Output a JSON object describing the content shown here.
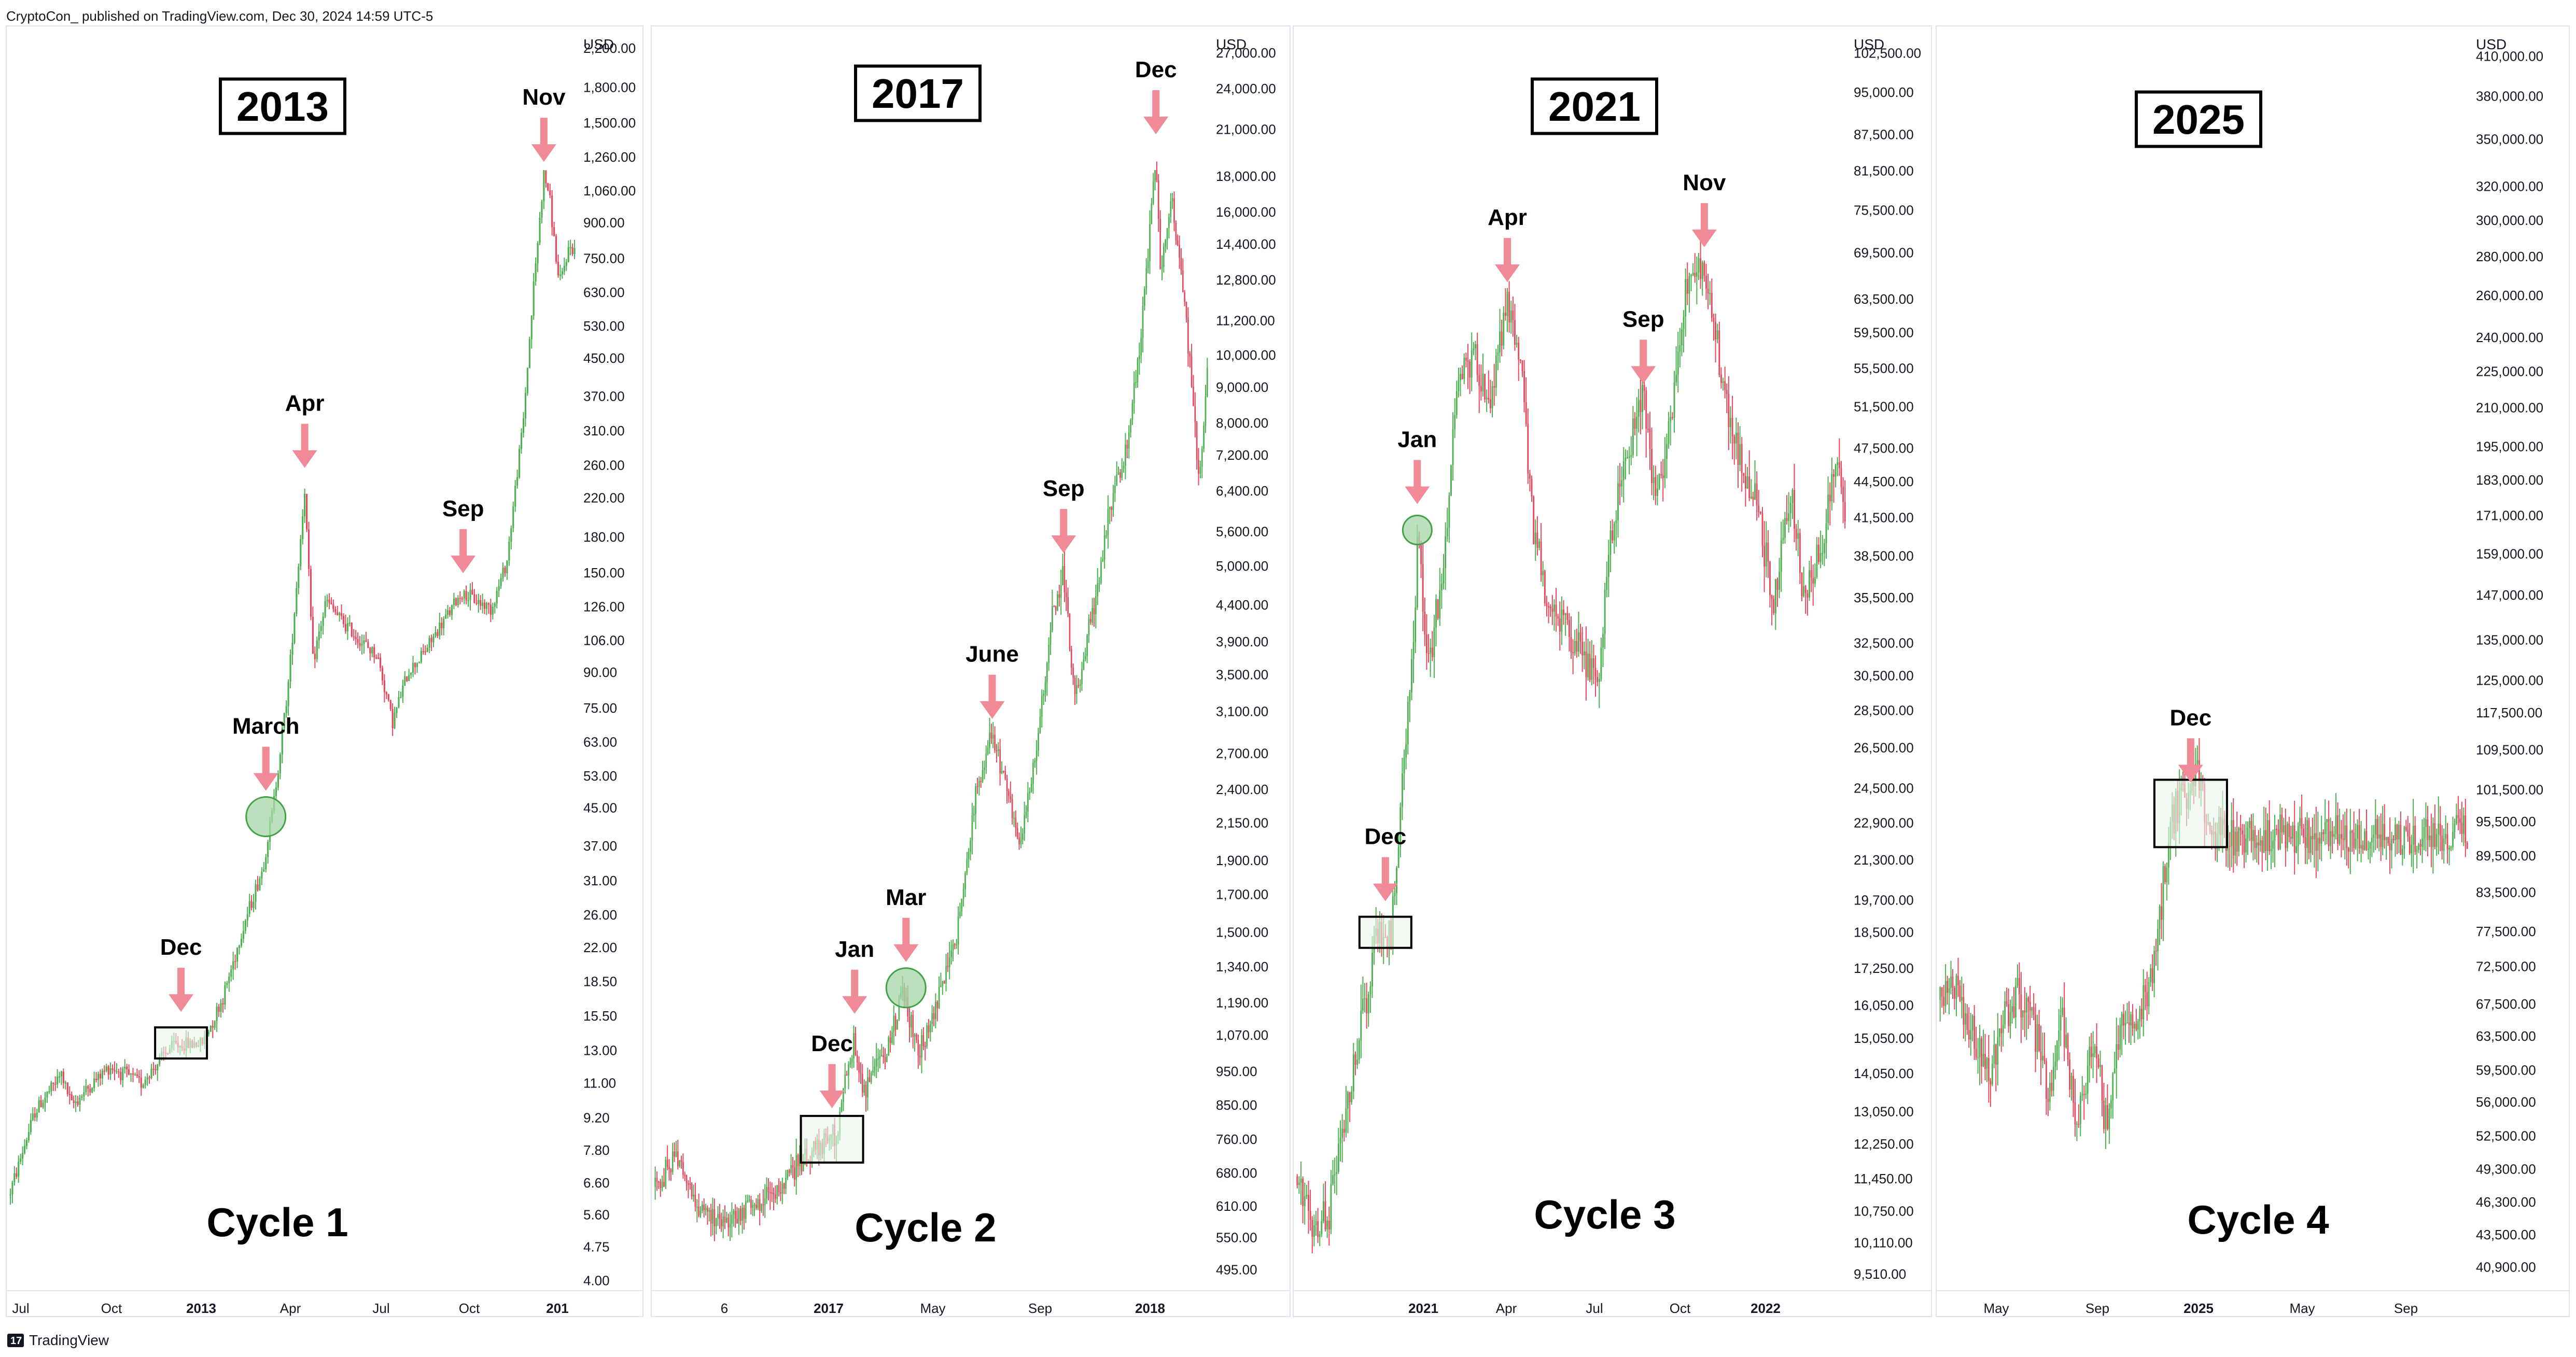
{
  "header": {
    "published_text": "CryptoCon_ published on TradingView.com, Dec 30, 2024 14:59 UTC-5"
  },
  "footer": {
    "brand": "TradingView"
  },
  "colors": {
    "up": "#4caf50",
    "down": "#e5475c",
    "arrow": "#f08a96",
    "circle_fill": "#a5d6a7",
    "circle_stroke": "#43a047",
    "box_fill": "#e8f5e9"
  },
  "chart_data": [
    {
      "type": "candlestick",
      "title": "2013",
      "subtitle": "Cycle 1",
      "axis_currency": "USD",
      "y_scale": "log",
      "ylim": [
        3.9,
        2400
      ],
      "y_ticks": [
        "4.00",
        "4.75",
        "5.60",
        "6.60",
        "7.80",
        "9.20",
        "11.00",
        "13.00",
        "15.50",
        "18.50",
        "22.00",
        "26.00",
        "31.00",
        "37.00",
        "45.00",
        "53.00",
        "63.00",
        "75.00",
        "90.00",
        "106.00",
        "126.00",
        "150.00",
        "180.00",
        "220.00",
        "260.00",
        "310.00",
        "370.00",
        "450.00",
        "530.00",
        "630.00",
        "750.00",
        "900.00",
        "1,060.00",
        "1,260.00",
        "1,500.00",
        "1,800.00",
        "2,200.00"
      ],
      "x_ticks": [
        "Jul",
        "Oct",
        "2013",
        "Apr",
        "Jul",
        "Oct",
        "201"
      ],
      "x_range": [
        "2012-06-25",
        "2013-12-31"
      ],
      "path_points": [
        [
          "2012-06-25",
          6.2
        ],
        [
          "2012-07-20",
          9.5
        ],
        [
          "2012-08-15",
          11.5
        ],
        [
          "2012-08-25",
          9.8
        ],
        [
          "2012-10-01",
          12
        ],
        [
          "2012-11-01",
          11
        ],
        [
          "2012-12-01",
          13.3
        ],
        [
          "2012-12-31",
          13.5
        ],
        [
          "2013-01-20",
          17
        ],
        [
          "2013-02-10",
          25
        ],
        [
          "2013-02-28",
          33
        ],
        [
          "2013-03-10",
          45
        ],
        [
          "2013-03-25",
          85
        ],
        [
          "2013-04-10",
          230
        ],
        [
          "2013-04-18",
          95
        ],
        [
          "2013-05-01",
          130
        ],
        [
          "2013-05-15",
          118
        ],
        [
          "2013-06-05",
          105
        ],
        [
          "2013-06-20",
          98
        ],
        [
          "2013-07-05",
          70
        ],
        [
          "2013-07-20",
          90
        ],
        [
          "2013-08-05",
          100
        ],
        [
          "2013-08-25",
          118
        ],
        [
          "2013-09-10",
          135
        ],
        [
          "2013-10-10",
          125
        ],
        [
          "2013-10-25",
          160
        ],
        [
          "2013-11-10",
          330
        ],
        [
          "2013-11-20",
          650
        ],
        [
          "2013-11-30",
          1150
        ],
        [
          "2013-12-05",
          1050
        ],
        [
          "2013-12-15",
          650
        ],
        [
          "2013-12-25",
          800
        ],
        [
          "2013-12-31",
          780
        ]
      ],
      "annotations": [
        {
          "label": "Dec",
          "date": "2012-12-10",
          "price": 13.5,
          "marker": "box"
        },
        {
          "label": "March",
          "date": "2013-03-03",
          "price": 43,
          "marker": "circle"
        },
        {
          "label": "Apr",
          "date": "2013-04-10",
          "price": 240,
          "marker": "none"
        },
        {
          "label": "Sep",
          "date": "2013-09-12",
          "price": 140,
          "marker": "none"
        },
        {
          "label": "Nov",
          "date": "2013-11-30",
          "price": 1150,
          "marker": "none"
        }
      ]
    },
    {
      "type": "candlestick",
      "title": "2017",
      "subtitle": "Cycle 2",
      "axis_currency": "USD",
      "y_scale": "log",
      "ylim": [
        470,
        29000
      ],
      "y_ticks": [
        "495.00",
        "550.00",
        "610.00",
        "680.00",
        "760.00",
        "850.00",
        "950.00",
        "1,070.00",
        "1,190.00",
        "1,340.00",
        "1,500.00",
        "1,700.00",
        "1,900.00",
        "2,150.00",
        "2,400.00",
        "2,700.00",
        "3,100.00",
        "3,500.00",
        "3,900.00",
        "4,400.00",
        "5,000.00",
        "5,600.00",
        "6,400.00",
        "7,200.00",
        "8,000.00",
        "9,000.00",
        "10,000.00",
        "11,200.00",
        "12,800.00",
        "14,400.00",
        "16,000.00",
        "18,000.00",
        "21,000.00",
        "24,000.00",
        "27,000.00"
      ],
      "x_ticks": [
        "6",
        "2017",
        "May",
        "Sep",
        "2018"
      ],
      "x_range": [
        "2016-05-20",
        "2018-02-15"
      ],
      "path_points": [
        [
          "2016-05-20",
          650
        ],
        [
          "2016-06-15",
          720
        ],
        [
          "2016-07-10",
          600
        ],
        [
          "2016-08-10",
          580
        ],
        [
          "2016-09-10",
          610
        ],
        [
          "2016-10-10",
          640
        ],
        [
          "2016-11-10",
          720
        ],
        [
          "2016-12-15",
          780
        ],
        [
          "2017-01-04",
          1050
        ],
        [
          "2017-01-15",
          880
        ],
        [
          "2017-02-15",
          1050
        ],
        [
          "2017-03-01",
          1250
        ],
        [
          "2017-03-20",
          1000
        ],
        [
          "2017-04-10",
          1200
        ],
        [
          "2017-05-01",
          1450
        ],
        [
          "2017-05-25",
          2400
        ],
        [
          "2017-06-12",
          2900
        ],
        [
          "2017-07-15",
          2000
        ],
        [
          "2017-08-01",
          2700
        ],
        [
          "2017-08-20",
          4200
        ],
        [
          "2017-09-02",
          4900
        ],
        [
          "2017-09-15",
          3200
        ],
        [
          "2017-10-05",
          4300
        ],
        [
          "2017-10-25",
          6000
        ],
        [
          "2017-11-15",
          7500
        ],
        [
          "2017-12-01",
          11000
        ],
        [
          "2017-12-17",
          19500
        ],
        [
          "2017-12-22",
          13500
        ],
        [
          "2018-01-05",
          16500
        ],
        [
          "2018-01-20",
          11500
        ],
        [
          "2018-02-05",
          6500
        ],
        [
          "2018-02-15",
          10000
        ]
      ],
      "annotations": [
        {
          "label": "Dec",
          "date": "2016-12-10",
          "price": 760,
          "marker": "box"
        },
        {
          "label": "Jan",
          "date": "2017-01-05",
          "price": 1100,
          "marker": "none"
        },
        {
          "label": "Mar",
          "date": "2017-03-05",
          "price": 1250,
          "marker": "circle"
        },
        {
          "label": "June",
          "date": "2017-06-12",
          "price": 2900,
          "marker": "none"
        },
        {
          "label": "Sep",
          "date": "2017-09-02",
          "price": 5000,
          "marker": "none"
        },
        {
          "label": "Dec",
          "date": "2017-12-17",
          "price": 19800,
          "marker": "none"
        }
      ]
    },
    {
      "type": "candlestick",
      "title": "2021",
      "subtitle": "Cycle 3",
      "axis_currency": "USD",
      "y_scale": "log",
      "ylim": [
        9300,
        107000
      ],
      "y_ticks": [
        "9,510.00",
        "10,110.00",
        "10,750.00",
        "11,450.00",
        "12,250.00",
        "13,050.00",
        "14,050.00",
        "15,050.00",
        "16,050.00",
        "17,250.00",
        "18,500.00",
        "19,700.00",
        "21,300.00",
        "22,900.00",
        "24,500.00",
        "26,500.00",
        "28,500.00",
        "30,500.00",
        "32,500.00",
        "35,500.00",
        "38,500.00",
        "41,500.00",
        "44,500.00",
        "47,500.00",
        "51,500.00",
        "55,500.00",
        "59,500.00",
        "63,500.00",
        "69,500.00",
        "75,500.00",
        "81,500.00",
        "87,500.00",
        "95,000.00",
        "102,500.00"
      ],
      "x_ticks": [
        "2021",
        "Apr",
        "Jul",
        "Oct",
        "2022"
      ],
      "x_range": [
        "2020-09-01",
        "2022-04-10"
      ],
      "path_points": [
        [
          "2020-09-01",
          11500
        ],
        [
          "2020-09-20",
          10500
        ],
        [
          "2020-10-05",
          10700
        ],
        [
          "2020-10-25",
          13000
        ],
        [
          "2020-11-10",
          15500
        ],
        [
          "2020-11-25",
          18500
        ],
        [
          "2020-12-10",
          18200
        ],
        [
          "2020-12-20",
          23000
        ],
        [
          "2021-01-05",
          33000
        ],
        [
          "2021-01-08",
          40000
        ],
        [
          "2021-01-20",
          31000
        ],
        [
          "2021-02-05",
          38000
        ],
        [
          "2021-02-20",
          55000
        ],
        [
          "2021-03-10",
          57000
        ],
        [
          "2021-03-25",
          52000
        ],
        [
          "2021-04-14",
          63000
        ],
        [
          "2021-04-30",
          55000
        ],
        [
          "2021-05-12",
          40000
        ],
        [
          "2021-05-25",
          36000
        ],
        [
          "2021-06-20",
          33000
        ],
        [
          "2021-07-20",
          30000
        ],
        [
          "2021-08-01",
          40000
        ],
        [
          "2021-08-20",
          47000
        ],
        [
          "2021-09-06",
          52000
        ],
        [
          "2021-09-20",
          42000
        ],
        [
          "2021-10-01",
          48000
        ],
        [
          "2021-10-20",
          64000
        ],
        [
          "2021-11-10",
          67000
        ],
        [
          "2021-11-25",
          57000
        ],
        [
          "2021-12-10",
          48000
        ],
        [
          "2022-01-05",
          43000
        ],
        [
          "2022-01-22",
          35000
        ],
        [
          "2022-02-10",
          44000
        ],
        [
          "2022-02-24",
          36000
        ],
        [
          "2022-03-15",
          39000
        ],
        [
          "2022-04-01",
          46000
        ],
        [
          "2022-04-10",
          42000
        ]
      ],
      "annotations": [
        {
          "label": "Dec",
          "date": "2020-12-05",
          "price": 18500,
          "marker": "box"
        },
        {
          "label": "Jan",
          "date": "2021-01-08",
          "price": 40500,
          "marker": "circle"
        },
        {
          "label": "Apr",
          "date": "2021-04-14",
          "price": 64000,
          "marker": "none"
        },
        {
          "label": "Sep",
          "date": "2021-09-06",
          "price": 52500,
          "marker": "none"
        },
        {
          "label": "Nov",
          "date": "2021-11-10",
          "price": 68500,
          "marker": "none"
        }
      ]
    },
    {
      "type": "candlestick",
      "title": "2025",
      "subtitle": "Cycle 4",
      "axis_currency": "USD",
      "y_scale": "log",
      "ylim": [
        39500,
        430000
      ],
      "y_ticks": [
        "40,900.00",
        "43,500.00",
        "46,300.00",
        "49,300.00",
        "52,500.00",
        "56,000.00",
        "59,500.00",
        "63,500.00",
        "67,500.00",
        "72,500.00",
        "77,500.00",
        "83,500.00",
        "89,500.00",
        "95,500.00",
        "101,500.00",
        "109,500.00",
        "117,500.00",
        "125,000.00",
        "135,000.00",
        "147,000.00",
        "159,000.00",
        "171,000.00",
        "183,000.00",
        "195,000.00",
        "210,000.00",
        "225,000.00",
        "240,000.00",
        "260,000.00",
        "280,000.00",
        "300,000.00",
        "320,000.00",
        "350,000.00",
        "380,000.00",
        "410,000.00"
      ],
      "x_ticks": [
        "May",
        "Sep",
        "2025",
        "May",
        "Sep"
      ],
      "x_range": [
        "2024-03-05",
        "2025-10-15"
      ],
      "path_points": [
        [
          "2024-03-05",
          68000
        ],
        [
          "2024-03-15",
          71000
        ],
        [
          "2024-04-01",
          67000
        ],
        [
          "2024-04-15",
          63000
        ],
        [
          "2024-05-01",
          59000
        ],
        [
          "2024-05-15",
          66000
        ],
        [
          "2024-06-01",
          69000
        ],
        [
          "2024-06-20",
          64000
        ],
        [
          "2024-07-05",
          56000
        ],
        [
          "2024-07-20",
          66000
        ],
        [
          "2024-08-05",
          53000
        ],
        [
          "2024-08-25",
          63000
        ],
        [
          "2024-09-06",
          54000
        ],
        [
          "2024-09-25",
          64000
        ],
        [
          "2024-10-15",
          67000
        ],
        [
          "2024-10-30",
          72000
        ],
        [
          "2024-11-12",
          88000
        ],
        [
          "2024-11-22",
          98000
        ],
        [
          "2024-12-05",
          100000
        ],
        [
          "2024-12-17",
          106000
        ],
        [
          "2024-12-30",
          93000
        ]
      ],
      "annotations": [
        {
          "label": "Dec",
          "date": "2024-12-10",
          "price": 97000,
          "marker": "box"
        }
      ]
    }
  ]
}
